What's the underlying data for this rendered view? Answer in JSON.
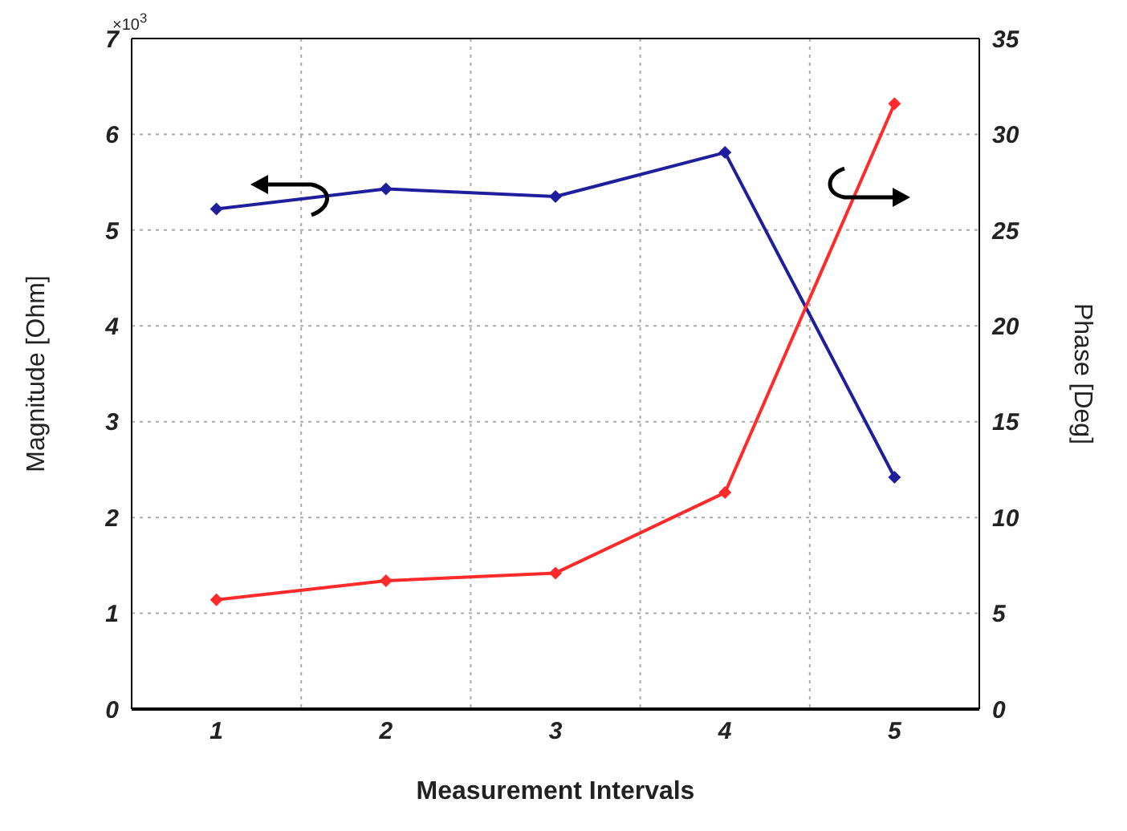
{
  "chart_data": {
    "type": "line",
    "xlabel": "Measurement Intervals",
    "ylabel": "Magnitude [Ohm]",
    "y2label": "Phase [Deg]",
    "categories": [
      "1",
      "2",
      "3",
      "4",
      "5"
    ],
    "series": [
      {
        "color": "#1f1f9e",
        "values": [
          5.22,
          5.43,
          5.35,
          5.81,
          2.42
        ]
      },
      {
        "color": "#ff2a2a",
        "values": [
          5.7,
          6.7,
          7.1,
          11.3,
          31.6
        ],
        "axis": "y2"
      }
    ],
    "ylim": [
      0,
      7
    ],
    "yticks": [
      0,
      1,
      2,
      3,
      4,
      5,
      6,
      7
    ],
    "y2lim": [
      0,
      35
    ],
    "y2ticks": [
      0,
      5,
      10,
      15,
      20,
      25,
      30,
      35
    ],
    "annotations": [
      "×10$^{3}$"
    ],
    "grid": true,
    "marker": "diamond",
    "line_style": "solid"
  }
}
